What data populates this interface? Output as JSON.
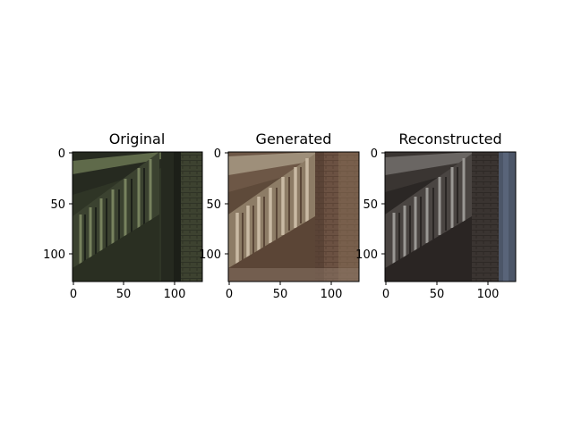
{
  "figure": {
    "panels": [
      {
        "title": "Original",
        "xticks": [
          "0",
          "50",
          "100"
        ],
        "yticks": [
          "0",
          "50",
          "100"
        ]
      },
      {
        "title": "Generated",
        "xticks": [
          "0",
          "50",
          "100"
        ],
        "yticks": [
          "0",
          "50",
          "100"
        ]
      },
      {
        "title": "Reconstructed",
        "xticks": [
          "0",
          "50",
          "100"
        ],
        "yticks": [
          "0",
          "50",
          "100"
        ]
      }
    ],
    "colors": {
      "original_wall": "#2f3526",
      "original_brick": "#3d4230",
      "original_frame": "#6f7a58",
      "generated_wall": "#5e4a3a",
      "generated_brick": "#6c5444",
      "generated_frame": "#b8a892",
      "reconstructed_wall": "#2b2725",
      "reconstructed_brick": "#3a3431",
      "reconstructed_frame": "#8a8884"
    }
  }
}
